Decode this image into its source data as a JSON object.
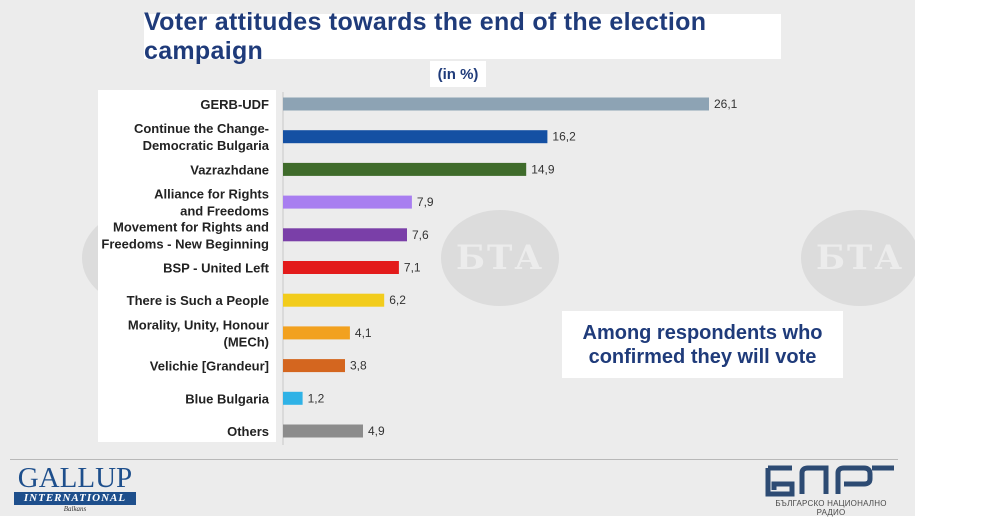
{
  "title": "Voter attitudes towards the end of the election campaign",
  "unit": "(in %)",
  "note": "Among respondents who confirmed they will vote",
  "watermark": "БТА",
  "logos": {
    "gallup_word": "GALLUP",
    "gallup_band": "INTERNATIONAL",
    "gallup_sub": "Balkans",
    "bnr_sub": "БЪЛГАРСКО НАЦИОНАЛНО РАДИО"
  },
  "chart_data": {
    "type": "bar",
    "orientation": "horizontal",
    "title": "Voter attitudes towards the end of the election campaign",
    "subtitle": "(in %)",
    "categories": [
      [
        "GERB-UDF"
      ],
      [
        "Continue the Change-",
        "Democratic Bulgaria"
      ],
      [
        "Vazrazhdane"
      ],
      [
        "Alliance for Rights",
        "and Freedoms"
      ],
      [
        "Movement for Rights and",
        "Freedoms - New Beginning"
      ],
      [
        "BSP - United Left"
      ],
      [
        "There is Such a People"
      ],
      [
        "Morality, Unity, Honour",
        "(MECh)"
      ],
      [
        "Velichie [Grandeur]"
      ],
      [
        "Blue Bulgaria"
      ],
      [
        "Others"
      ]
    ],
    "values": [
      26.1,
      16.2,
      14.9,
      7.9,
      7.6,
      7.1,
      6.2,
      4.1,
      3.8,
      1.2,
      4.9
    ],
    "value_labels": [
      "26,1",
      "16,2",
      "14,9",
      "7,9",
      "7,6",
      "7,1",
      "6,2",
      "4,1",
      "3,8",
      "1,2",
      "4,9"
    ],
    "colors": [
      "#8da3b4",
      "#1450a3",
      "#3f6b2b",
      "#a87ef0",
      "#7a3fa8",
      "#e31b1b",
      "#f2cc1c",
      "#f2a11f",
      "#d4661f",
      "#2fb2e6",
      "#8c8c8c"
    ],
    "xlim": [
      0,
      30
    ],
    "grid": false,
    "legend": "none"
  }
}
